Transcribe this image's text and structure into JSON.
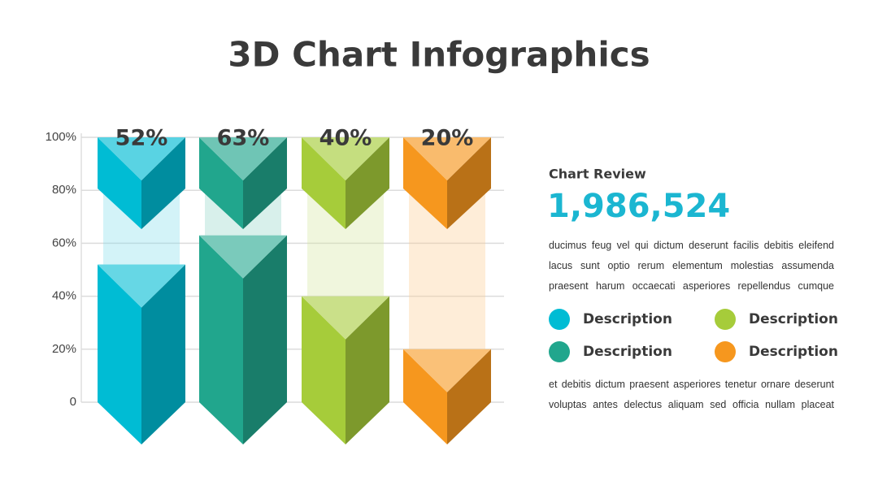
{
  "title": "3D Chart Infographics",
  "chart_data": {
    "type": "bar",
    "categories": [
      null,
      null,
      null,
      null
    ],
    "values": [
      52,
      63,
      40,
      20
    ],
    "value_labels": [
      "52%",
      "63%",
      "40%",
      "20%"
    ],
    "colors": [
      "#00bcd4",
      "#21a68d",
      "#a6cc3a",
      "#f6971e"
    ],
    "ylim": [
      0,
      100
    ],
    "yticks": [
      0,
      {
        "value": 20,
        "label": "20%"
      },
      {
        "value": 40,
        "label": "40%"
      },
      {
        "value": 60,
        "label": "60%"
      },
      {
        "value": 80,
        "label": "80%"
      },
      {
        "value": 100,
        "label": "100%"
      }
    ],
    "grid": true
  },
  "panel": {
    "heading": "Chart Review",
    "total": "1,986,524",
    "text": [
      "ducimus feug vel qui dictum deserunt facilis debitis eleifend",
      "lacus sunt optio rerum elementum molestias assumenda",
      "praesent harum occaecati asperiores repellendus cumque"
    ],
    "legend": [
      {
        "label": "Description",
        "color": "#00bcd4"
      },
      {
        "label": "Description",
        "color": "#21a68d"
      },
      {
        "label": "Description",
        "color": "#a6cc3a"
      },
      {
        "label": "Description",
        "color": "#f6971e"
      }
    ],
    "note": [
      "et debitis dictum praesent asperiores tenetur ornare deserunt",
      "voluptas antes delectus aliquam sed officia nullam placeat"
    ]
  }
}
